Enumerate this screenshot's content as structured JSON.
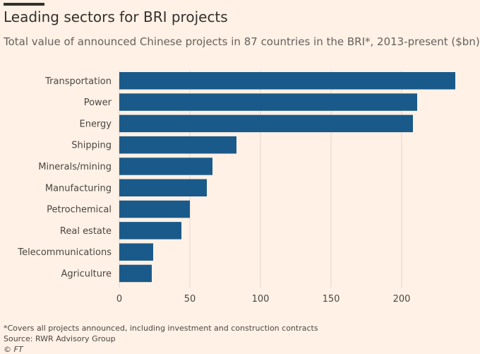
{
  "title": "Leading sectors for BRI projects",
  "subtitle": "Total value of announced Chinese projects in 87 countries in the BRI*, 2013-present ($bn)",
  "footnote": "*Covers all projects announced, including investment and construction contracts",
  "source": "Source: RWR Advisory Group",
  "credit": "© FT",
  "colors": {
    "background": "#fff1e5",
    "bar": "#1a5a8a",
    "grid": "#e3d6cb",
    "text": "#33302e"
  },
  "chart_data": {
    "type": "bar",
    "orientation": "horizontal",
    "categories": [
      "Transportation",
      "Power",
      "Energy",
      "Shipping",
      "Minerals/mining",
      "Manufacturing",
      "Petrochemical",
      "Real estate",
      "Telecommunications",
      "Agriculture"
    ],
    "values": [
      238,
      211,
      208,
      83,
      66,
      62,
      50,
      44,
      24,
      23
    ],
    "xlim": [
      0,
      238
    ],
    "xticks": [
      0,
      50,
      100,
      150,
      200
    ],
    "grid": true,
    "legend": "none"
  }
}
